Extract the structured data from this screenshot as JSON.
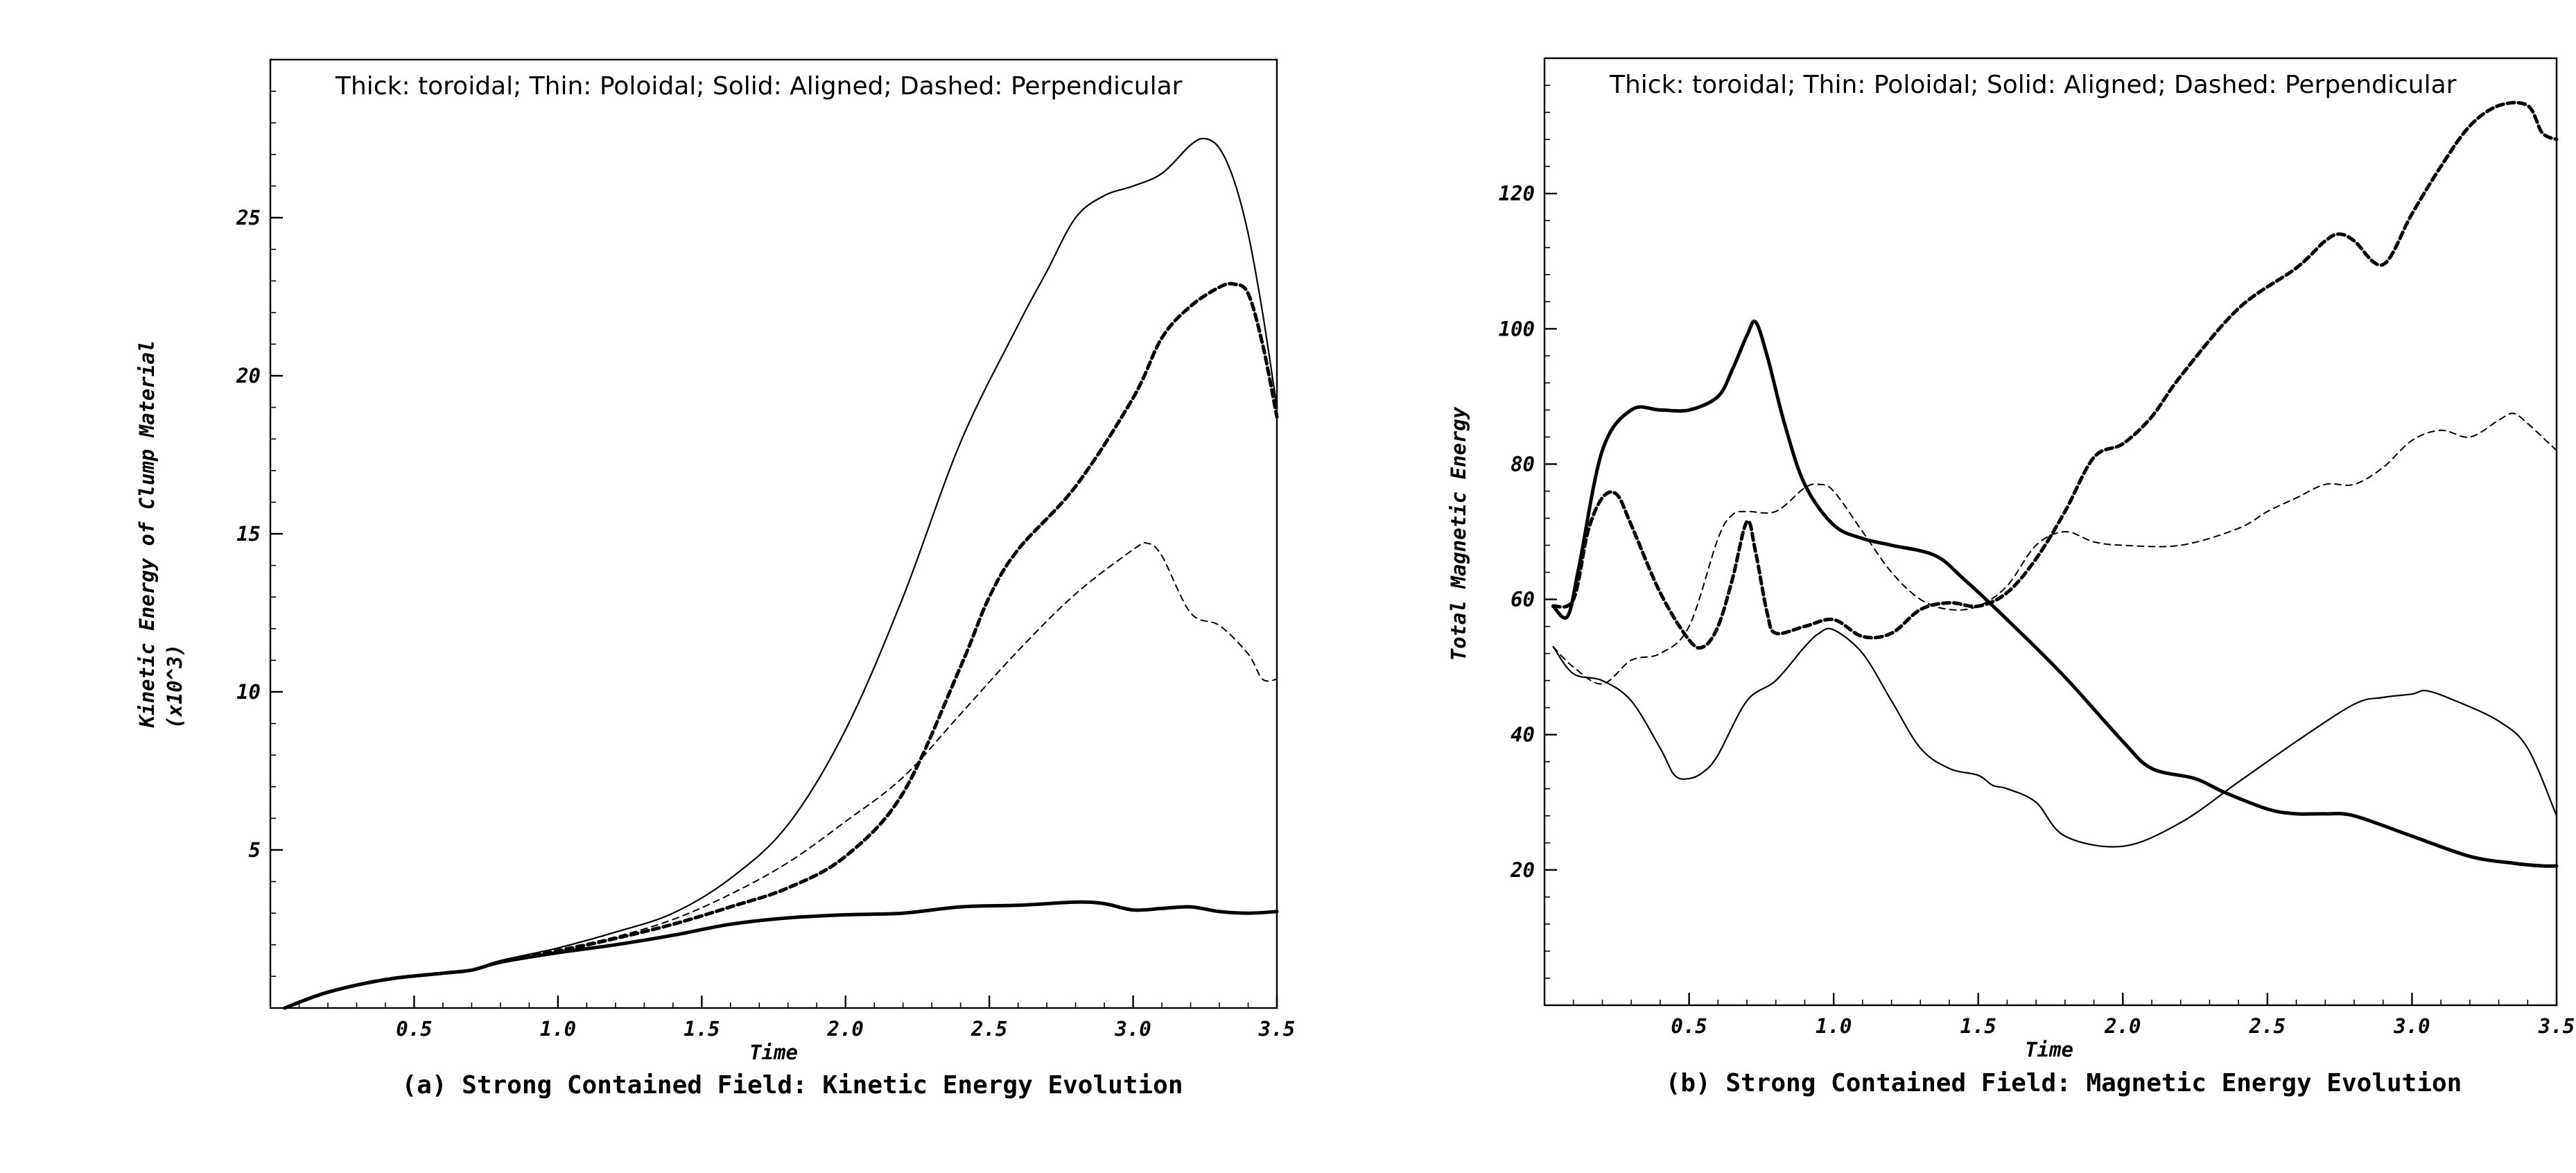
{
  "chart_data": [
    {
      "type": "line",
      "panel": "a",
      "caption": "(a)  Strong Contained Field: Kinetic Energy Evolution",
      "annotation": "Thick: toroidal; Thin: Poloidal; Solid: Aligned; Dashed: Perpendicular",
      "xlabel": "Time",
      "ylabel_line1": "Kinetic Energy of Clump Material",
      "ylabel_line2": "(x10^3)",
      "xlim": [
        0.0,
        3.5
      ],
      "ylim": [
        0.0,
        30.0
      ],
      "xticks": [
        "0.5",
        "1.0",
        "1.5",
        "2.0",
        "2.5",
        "3.0",
        "3.5"
      ],
      "xtick_values": [
        0.5,
        1.0,
        1.5,
        2.0,
        2.5,
        3.0,
        3.5
      ],
      "yticks": [
        "5",
        "10",
        "15",
        "20",
        "25"
      ],
      "ytick_values": [
        5,
        10,
        15,
        20,
        25
      ],
      "series": [
        {
          "name": "Thin Solid (Poloidal, Aligned)",
          "style": "thin-solid",
          "x": [
            0.05,
            0.2,
            0.4,
            0.6,
            0.7,
            0.8,
            1.0,
            1.2,
            1.4,
            1.6,
            1.8,
            2.0,
            2.2,
            2.4,
            2.6,
            2.7,
            2.8,
            2.9,
            3.0,
            3.1,
            3.2,
            3.25,
            3.3,
            3.35,
            3.4,
            3.45,
            3.5
          ],
          "y": [
            0.0,
            0.5,
            0.9,
            1.1,
            1.2,
            1.5,
            1.9,
            2.4,
            3.0,
            4.1,
            5.8,
            8.8,
            13.0,
            17.9,
            21.6,
            23.3,
            25.0,
            25.7,
            26.0,
            26.4,
            27.3,
            27.5,
            27.2,
            26.2,
            24.5,
            22.0,
            19.0
          ]
        },
        {
          "name": "Thick Dashed (Toroidal, Perpendicular)",
          "style": "thick-dashed",
          "x": [
            0.05,
            0.2,
            0.4,
            0.6,
            0.7,
            0.8,
            1.0,
            1.2,
            1.4,
            1.6,
            1.8,
            2.0,
            2.2,
            2.4,
            2.5,
            2.6,
            2.8,
            3.0,
            3.1,
            3.2,
            3.3,
            3.35,
            3.4,
            3.45,
            3.5
          ],
          "y": [
            0.0,
            0.5,
            0.9,
            1.1,
            1.2,
            1.45,
            1.8,
            2.2,
            2.65,
            3.2,
            3.8,
            4.8,
            6.8,
            10.8,
            13.0,
            14.5,
            16.5,
            19.3,
            21.2,
            22.2,
            22.8,
            22.9,
            22.6,
            21.0,
            18.7
          ]
        },
        {
          "name": "Thin Dashed (Poloidal, Perpendicular)",
          "style": "thin-dashed",
          "x": [
            0.05,
            0.2,
            0.4,
            0.6,
            0.7,
            0.8,
            1.0,
            1.2,
            1.4,
            1.6,
            1.8,
            2.0,
            2.2,
            2.4,
            2.6,
            2.8,
            3.0,
            3.05,
            3.1,
            3.2,
            3.3,
            3.4,
            3.45,
            3.5
          ],
          "y": [
            0.0,
            0.5,
            0.9,
            1.1,
            1.2,
            1.5,
            1.85,
            2.25,
            2.8,
            3.6,
            4.6,
            5.9,
            7.3,
            9.3,
            11.3,
            13.1,
            14.5,
            14.7,
            14.3,
            12.5,
            12.1,
            11.2,
            10.4,
            10.4
          ]
        },
        {
          "name": "Thick Solid (Toroidal, Aligned)",
          "style": "thick-solid",
          "x": [
            0.05,
            0.2,
            0.4,
            0.6,
            0.7,
            0.8,
            1.0,
            1.2,
            1.4,
            1.6,
            1.8,
            2.0,
            2.2,
            2.4,
            2.6,
            2.8,
            2.9,
            3.0,
            3.1,
            3.2,
            3.3,
            3.4,
            3.5
          ],
          "y": [
            0.0,
            0.5,
            0.9,
            1.1,
            1.2,
            1.45,
            1.75,
            2.0,
            2.3,
            2.65,
            2.85,
            2.95,
            3.0,
            3.2,
            3.25,
            3.35,
            3.3,
            3.1,
            3.15,
            3.2,
            3.05,
            3.0,
            3.05
          ]
        }
      ]
    },
    {
      "type": "line",
      "panel": "b",
      "caption": "(b)  Strong Contained Field: Magnetic Energy Evolution",
      "annotation": "Thick: toroidal; Thin: Poloidal; Solid: Aligned; Dashed: Perpendicular",
      "xlabel": "Time",
      "ylabel_line1": "Total Magnetic Energy",
      "ylabel_line2": "",
      "xlim": [
        0.0,
        3.5
      ],
      "ylim": [
        0.0,
        140.0
      ],
      "xticks": [
        "0.5",
        "1.0",
        "1.5",
        "2.0",
        "2.5",
        "3.0",
        "3.5"
      ],
      "xtick_values": [
        0.5,
        1.0,
        1.5,
        2.0,
        2.5,
        3.0,
        3.5
      ],
      "yticks": [
        "20",
        "40",
        "60",
        "80",
        "100",
        "120"
      ],
      "ytick_values": [
        20,
        40,
        60,
        80,
        100,
        120
      ],
      "series": [
        {
          "name": "Thick Solid (Toroidal, Aligned)",
          "style": "thick-solid",
          "x": [
            0.03,
            0.08,
            0.12,
            0.2,
            0.3,
            0.4,
            0.5,
            0.6,
            0.65,
            0.7,
            0.73,
            0.77,
            0.83,
            0.9,
            1.0,
            1.1,
            1.2,
            1.35,
            1.45,
            1.6,
            1.8,
            2.0,
            2.1,
            2.25,
            2.35,
            2.5,
            2.6,
            2.7,
            2.8,
            3.0,
            3.2,
            3.35,
            3.45,
            3.5
          ],
          "y": [
            59,
            57.5,
            65,
            82,
            88,
            88,
            88,
            90,
            94,
            99,
            101,
            96,
            86,
            77,
            71,
            69,
            68,
            66.5,
            63,
            57,
            48.5,
            39,
            35,
            33.5,
            31.5,
            29,
            28.3,
            28.3,
            28,
            25,
            22,
            21,
            20.6,
            20.6
          ]
        },
        {
          "name": "Thin Solid (Poloidal, Aligned)",
          "style": "thin-solid",
          "x": [
            0.03,
            0.1,
            0.2,
            0.3,
            0.4,
            0.45,
            0.5,
            0.55,
            0.6,
            0.7,
            0.8,
            0.9,
            0.95,
            1.0,
            1.1,
            1.2,
            1.3,
            1.4,
            1.5,
            1.55,
            1.6,
            1.7,
            1.8,
            2.0,
            2.2,
            2.4,
            2.6,
            2.8,
            2.9,
            3.0,
            3.05,
            3.15,
            3.3,
            3.4,
            3.5
          ],
          "y": [
            53,
            49,
            48,
            45,
            38,
            34,
            33.5,
            34.5,
            37,
            45,
            48,
            53,
            55,
            55.5,
            52,
            45,
            38,
            35,
            34,
            32.5,
            32,
            30,
            25,
            23.5,
            27,
            33,
            39,
            44.5,
            45.5,
            46,
            46.5,
            45,
            42,
            38,
            28
          ]
        },
        {
          "name": "Thick Dashed (Toroidal, Perpendicular)",
          "style": "thick-dashed",
          "x": [
            0.03,
            0.1,
            0.15,
            0.2,
            0.25,
            0.3,
            0.4,
            0.5,
            0.55,
            0.6,
            0.65,
            0.7,
            0.73,
            0.77,
            0.8,
            0.9,
            1.0,
            1.1,
            1.2,
            1.3,
            1.4,
            1.5,
            1.6,
            1.7,
            1.8,
            1.9,
            2.0,
            2.1,
            2.2,
            2.4,
            2.6,
            2.7,
            2.75,
            2.8,
            2.9,
            3.0,
            3.1,
            3.2,
            3.3,
            3.4,
            3.45,
            3.5
          ],
          "y": [
            59,
            60,
            70,
            75,
            75.5,
            71,
            61,
            54,
            53,
            56,
            63,
            71.5,
            67,
            58,
            55,
            56,
            57,
            54.5,
            55,
            58.5,
            59.5,
            59,
            61,
            66,
            73,
            81,
            83,
            87,
            93,
            103,
            109,
            113,
            114,
            113,
            109.5,
            117,
            124,
            130,
            133,
            133,
            129,
            128
          ]
        },
        {
          "name": "Thin Dashed (Poloidal, Perpendicular)",
          "style": "thin-dashed",
          "x": [
            0.03,
            0.1,
            0.2,
            0.3,
            0.4,
            0.5,
            0.6,
            0.65,
            0.7,
            0.8,
            0.9,
            0.95,
            1.0,
            1.1,
            1.2,
            1.3,
            1.4,
            1.5,
            1.6,
            1.7,
            1.8,
            1.9,
            2.0,
            2.2,
            2.4,
            2.5,
            2.6,
            2.7,
            2.8,
            2.9,
            3.0,
            3.1,
            3.2,
            3.3,
            3.35,
            3.4,
            3.5
          ],
          "y": [
            53,
            50,
            47.5,
            51,
            52,
            56,
            69,
            72.5,
            73,
            73,
            76.5,
            77,
            76,
            70,
            64,
            60,
            58.5,
            59,
            62,
            68,
            70,
            68.5,
            68,
            68,
            70.5,
            73,
            75,
            77,
            77,
            79.5,
            83.5,
            85,
            84,
            86.5,
            87.5,
            86,
            82
          ]
        }
      ]
    }
  ]
}
